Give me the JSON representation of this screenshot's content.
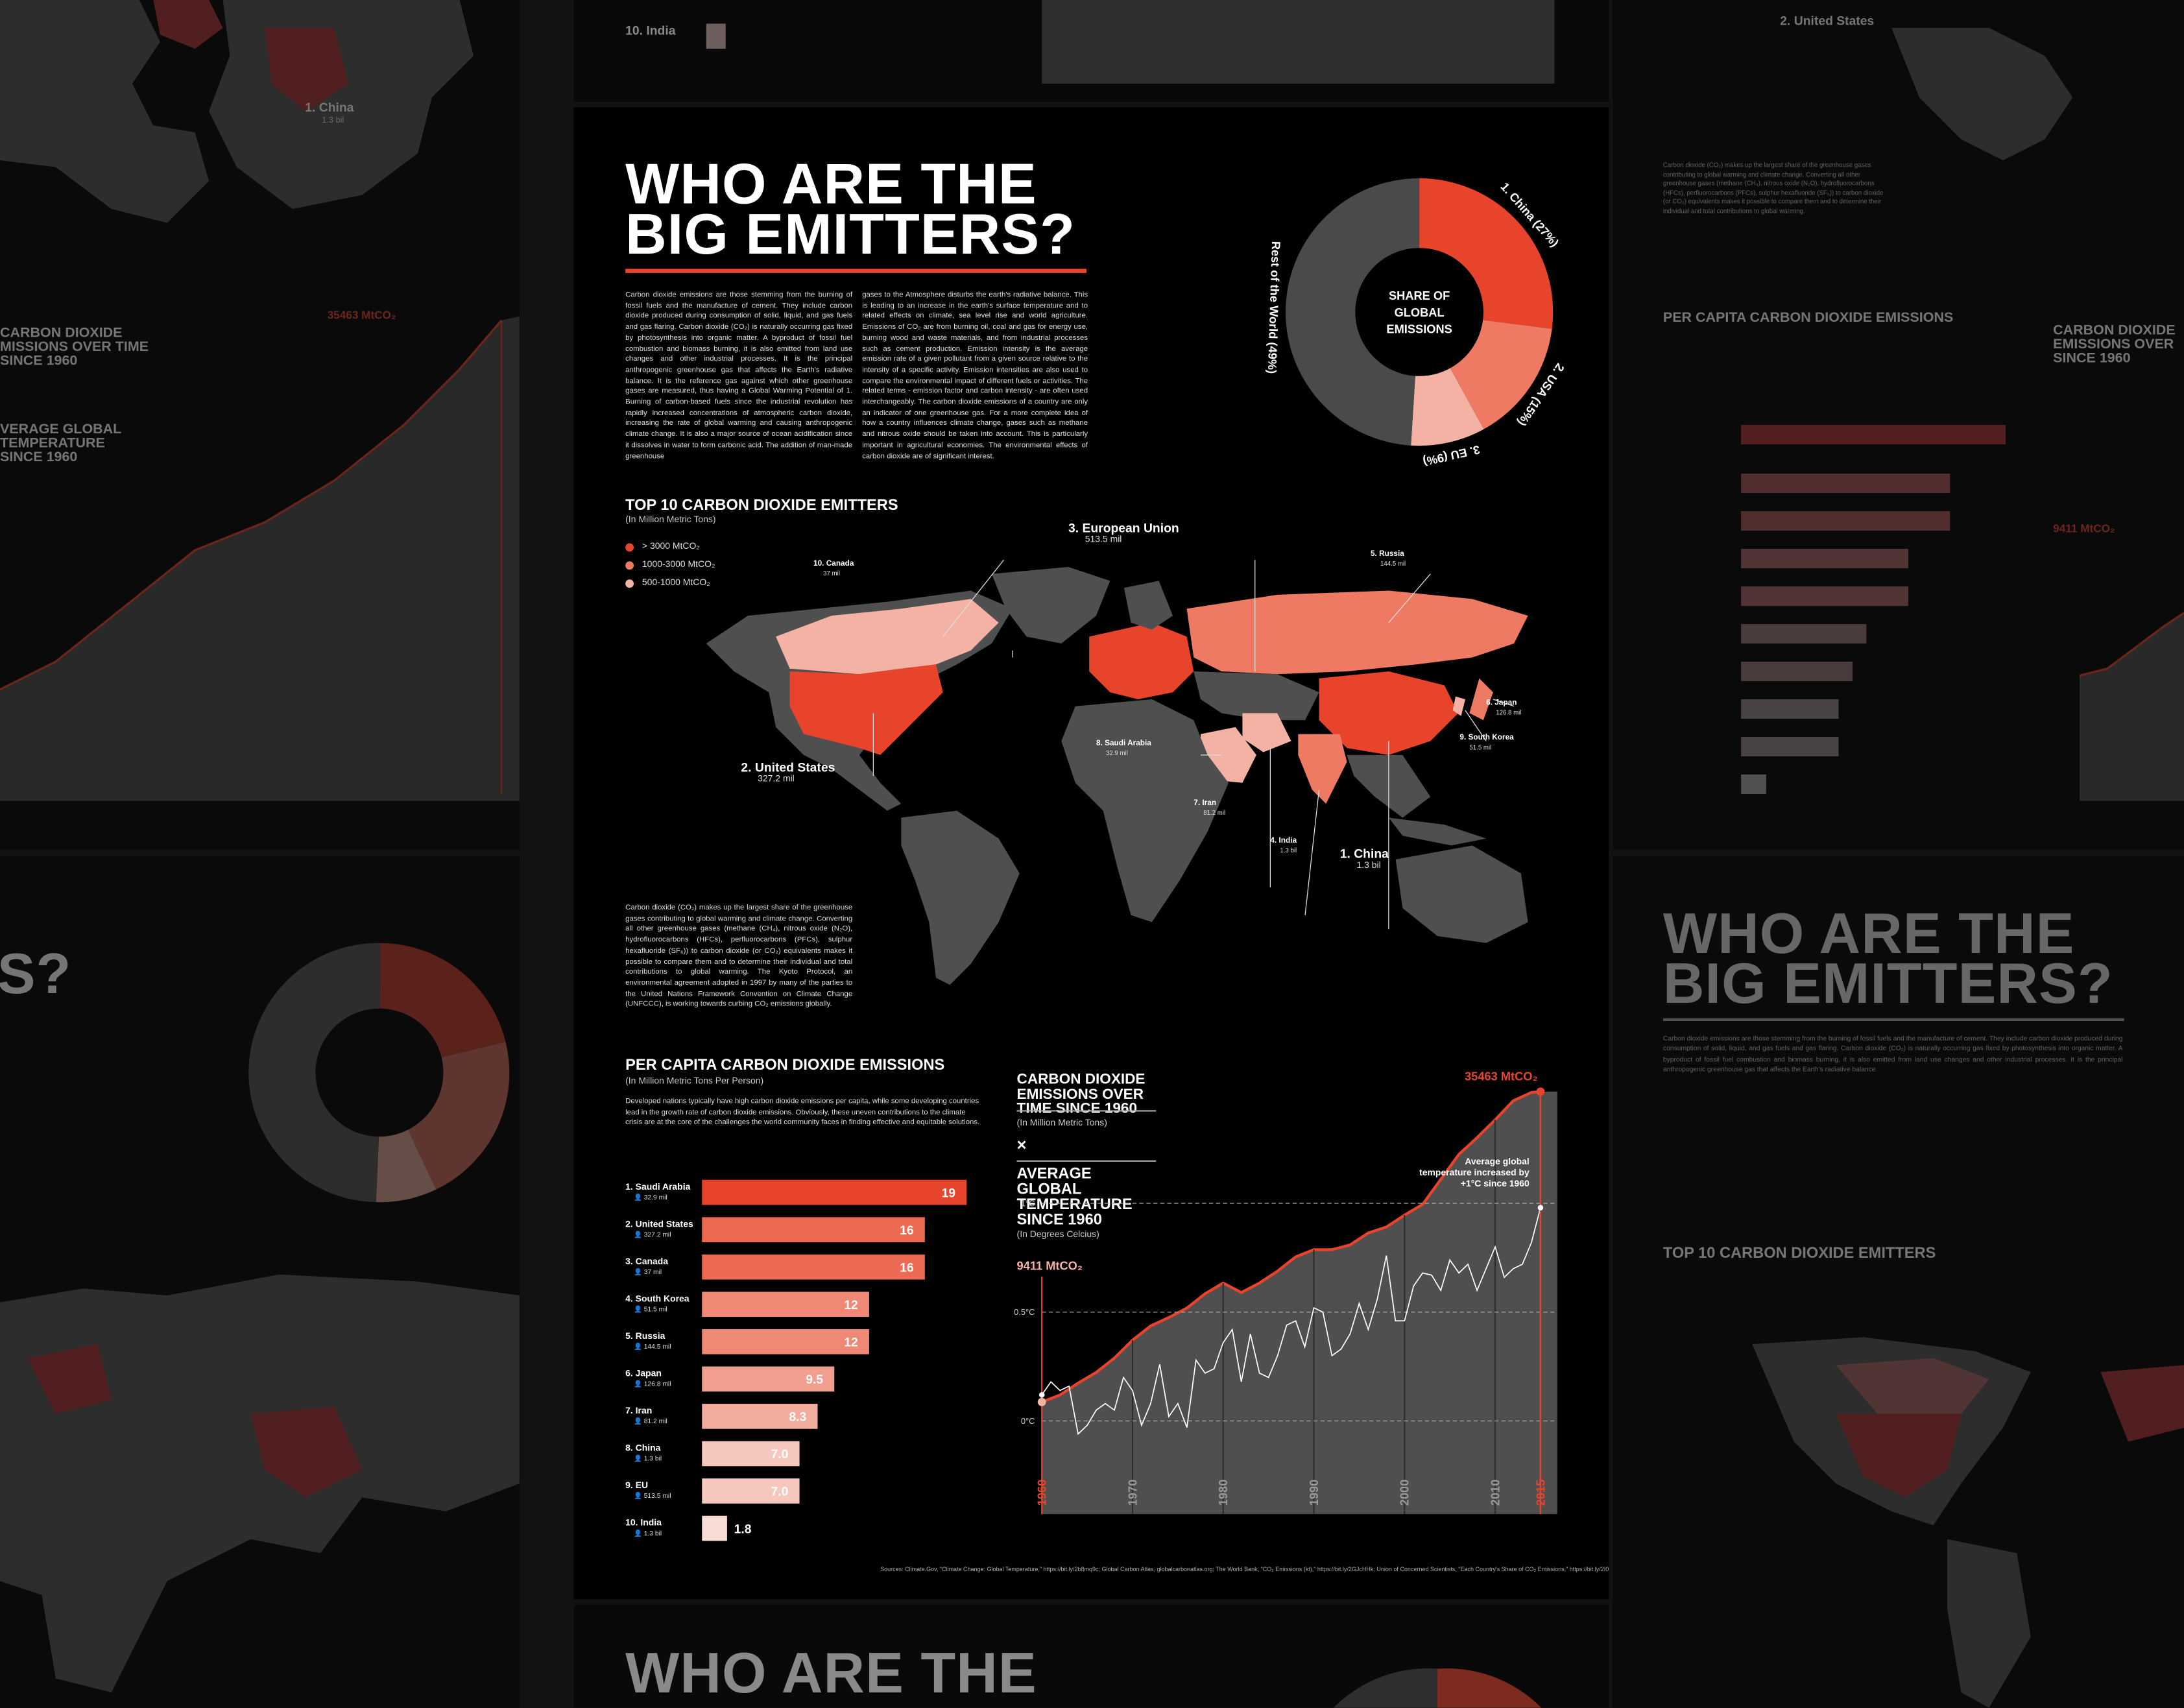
{
  "title_line1": "WHO ARE THE",
  "title_line2": "BIG EMITTERS?",
  "intro_col1": "Carbon dioxide emissions are those stemming from the burning of fossil fuels and the manufacture of cement. They include carbon dioxide produced during consumption of solid, liquid, and gas fuels and gas flaring. Carbon dioxide (CO₂) is naturally occurring gas fixed by photosynthesis into organic matter. A byproduct of fossil fuel combustion and biomass burning, it is also emitted from land use changes and other industrial processes. It is the principal anthropogenic greenhouse gas that affects the Earth's radiative balance. It is the reference gas against which other greenhouse gases are measured, thus having a Global Warming Potential of 1. Burning of carbon-based fuels since the industrial revolution has rapidly increased concentrations of atmospheric carbon dioxide, increasing the rate of global warming and causing anthropogenic climate change. It is also a major source of ocean acidification since it dissolves in water to form carbonic acid. The addition of man-made greenhouse",
  "intro_col2": "gases to the Atmosphere disturbs the earth's radiative balance. This is leading to an increase in the earth's surface temperature and to related effects on climate, sea level rise and world agriculture. Emissions of CO₂ are from burning oil, coal and gas for energy use, burning wood and waste materials, and from industrial processes such as cement production. Emission intensity is the average emission rate of a given pollutant from a given source relative to the intensity of a specific activity. Emission intensities are also used to compare the environmental impact of different fuels or activities. The related terms - emission factor and carbon intensity - are often used interchangeably. The carbon dioxide emissions of a country are only an indicator of one greenhouse gas. For a more complete idea of how a country influences climate change, gases such as methane and nitrous oxide should be taken into account. This is particularly important in agricultural economies. The environmental effects of carbon dioxide are of significant interest.",
  "co2_paragraph": "Carbon dioxide (CO₂) makes up the largest share of the greenhouse gases contributing to global warming and climate change. Converting all other greenhouse gases (methane (CH₄), nitrous oxide (N₂O), hydrofluorocarbons (HFCs), perfluorocarbons (PFCs), sulphur hexafluoride (SF₆)) to carbon dioxide (or CO₂) equivalents makes it possible to compare them and to determine their individual and total contributions to global warming. The Kyoto Protocol, an environmental agreement adopted in 1997 by many of the parties to the United Nations Framework Convention on Climate Change (UNFCCC), is working towards curbing CO₂ emissions globally.",
  "pie_center": [
    "SHARE OF",
    "GLOBAL",
    "EMISSIONS"
  ],
  "top10": {
    "title": "TOP 10 CARBON DIOXIDE EMITTERS",
    "subtitle": "(In Million Metric Tons)",
    "legend": [
      {
        "label": "> 3000 MtCO₂",
        "color": "#e8442b"
      },
      {
        "label": "1000-3000 MtCO₂",
        "color": "#ef7a63"
      },
      {
        "label": "500-1000 MtCO₂",
        "color": "#f4b2a4"
      }
    ],
    "map_labels": [
      {
        "name": "3. European Union",
        "pop": "513.5 mil"
      },
      {
        "name": "5. Russia",
        "pop": "144.5 mil"
      },
      {
        "name": "10. Canada",
        "pop": "37 mil"
      },
      {
        "name": "6. Japan",
        "pop": "126.8 mil"
      },
      {
        "name": "8. Saudi Arabia",
        "pop": "32.9 mil"
      },
      {
        "name": "9. South Korea",
        "pop": "51.5 mil"
      },
      {
        "name": "2. United States",
        "pop": "327.2 mil"
      },
      {
        "name": "7. Iran",
        "pop": "81.2 mil"
      },
      {
        "name": "4. India",
        "pop": "1.3 bil"
      },
      {
        "name": "1. China",
        "pop": "1.3 bil"
      }
    ]
  },
  "percap": {
    "title": "PER CAPITA CARBON DIOXIDE EMISSIONS",
    "subtitle": "(In Million Metric Tons Per Person)",
    "desc": "Developed nations typically have high carbon dioxide emissions per capita, while some developing countries lead in the growth rate of carbon dioxide emissions. Obviously, these uneven contributions to the climate crisis are at the core of the challenges the world community faces in finding effective and equitable solutions."
  },
  "timeseries": {
    "title1": "CARBON DIOXIDE EMISSIONS OVER TIME SINCE 1960",
    "sub1": "(In Million Metric Tons)",
    "times": "×",
    "title2": "AVERAGE GLOBAL TEMPERATURE SINCE 1960",
    "sub2": "(In Degrees Celcius)",
    "start_label": "9411 MtCO₂",
    "end_label": "35463 MtCO₂",
    "annotation": "Average global temperature increased by +1°C since 1960"
  },
  "sources": "Sources: Climate.Gov, \"Climate Change: Global Temperature,\" https://bit.ly/2b8mq9c; Global Carbon Atlas, globalcarbonatlas.org; The World Bank, \"CO₂ Emissions (kt),\" https://bit.ly/2GJcHHk; Union of Concerned Scientists, \"Each Country's Share of CO₂ Emissions,\" https://bit.ly/2I0eiGDn",
  "chart_data": [
    {
      "type": "pie",
      "title": "",
      "categories": [
        "1. China (27%)",
        "2. USA (15%)",
        "3. EU (9%)",
        "Rest of the World (49%)"
      ],
      "values": [
        27,
        15,
        9,
        49
      ],
      "colors": [
        "#e8442b",
        "#ef7a63",
        "#f4b2a4",
        "#4a4a4a"
      ]
    },
    {
      "type": "bar",
      "title": "PER CAPITA CARBON DIOXIDE EMISSIONS",
      "categories": [
        "1. Saudi Arabia",
        "2. United States",
        "3. Canada",
        "4. South Korea",
        "5. Russia",
        "6. Japan",
        "7. Iran",
        "8. China",
        "9. EU",
        "10. India"
      ],
      "pops": [
        "32.9 mil",
        "327.2 mil",
        "37 mil",
        "51.5 mil",
        "144.5 mil",
        "126.8 mil",
        "81.2 mil",
        "1.3 bil",
        "513.5 mil",
        "1.3 bil"
      ],
      "values": [
        19,
        16,
        16,
        12,
        12,
        9.5,
        8.3,
        7.0,
        7.0,
        1.8
      ],
      "value_labels": [
        "19",
        "16",
        "16",
        "12",
        "12",
        "9.5",
        "8.3",
        "7.0",
        "7.0",
        "1.8"
      ],
      "colors": [
        "#e8442b",
        "#ec6a52",
        "#ec6a52",
        "#ef8874",
        "#ef8874",
        "#f1a08f",
        "#f3ad9e",
        "#f6c8bd",
        "#f6c8bd",
        "#f8dcd5"
      ],
      "xlim": [
        0,
        19
      ]
    },
    {
      "type": "area",
      "title": "CARBON DIOXIDE EMISSIONS OVER TIME SINCE 1960",
      "x": [
        1960,
        1962,
        1964,
        1966,
        1968,
        1970,
        1972,
        1974,
        1976,
        1978,
        1980,
        1982,
        1984,
        1986,
        1988,
        1990,
        1992,
        1994,
        1996,
        1998,
        2000,
        2002,
        2004,
        2006,
        2008,
        2010,
        2012,
        2014,
        2015
      ],
      "emissions": [
        9411,
        10000,
        11000,
        11900,
        13100,
        14600,
        15800,
        16500,
        17300,
        18500,
        19400,
        18600,
        19400,
        20400,
        21600,
        22200,
        22200,
        22600,
        23600,
        24100,
        25100,
        26000,
        28100,
        30200,
        31600,
        33100,
        34700,
        35400,
        35463
      ],
      "ylim_emissions": [
        0,
        38000
      ],
      "temp_x": [
        1960,
        1961,
        1962,
        1963,
        1964,
        1965,
        1966,
        1967,
        1968,
        1969,
        1970,
        1971,
        1972,
        1973,
        1974,
        1975,
        1976,
        1977,
        1978,
        1979,
        1980,
        1981,
        1982,
        1983,
        1984,
        1985,
        1986,
        1987,
        1988,
        1989,
        1990,
        1991,
        1992,
        1993,
        1994,
        1995,
        1996,
        1997,
        1998,
        1999,
        2000,
        2001,
        2002,
        2003,
        2004,
        2005,
        2006,
        2007,
        2008,
        2009,
        2010,
        2011,
        2012,
        2013,
        2014,
        2015
      ],
      "temperature": [
        0.12,
        0.18,
        0.14,
        0.16,
        -0.06,
        -0.02,
        0.05,
        0.08,
        0.05,
        0.2,
        0.14,
        -0.02,
        0.08,
        0.26,
        0.02,
        0.08,
        -0.03,
        0.28,
        0.22,
        0.24,
        0.36,
        0.42,
        0.18,
        0.4,
        0.22,
        0.2,
        0.3,
        0.44,
        0.46,
        0.34,
        0.52,
        0.5,
        0.3,
        0.33,
        0.4,
        0.54,
        0.42,
        0.56,
        0.76,
        0.46,
        0.46,
        0.62,
        0.68,
        0.67,
        0.6,
        0.74,
        0.68,
        0.72,
        0.6,
        0.7,
        0.8,
        0.66,
        0.7,
        0.72,
        0.82,
        0.98
      ],
      "temp_ticks": [
        "1°C",
        "0.5°C",
        "0°C"
      ],
      "ylim_temperature": [
        -0.3,
        1.3
      ],
      "x_ticks": [
        "1960",
        "1970",
        "1980",
        "1990",
        "2000",
        "2010",
        "2015"
      ]
    }
  ]
}
